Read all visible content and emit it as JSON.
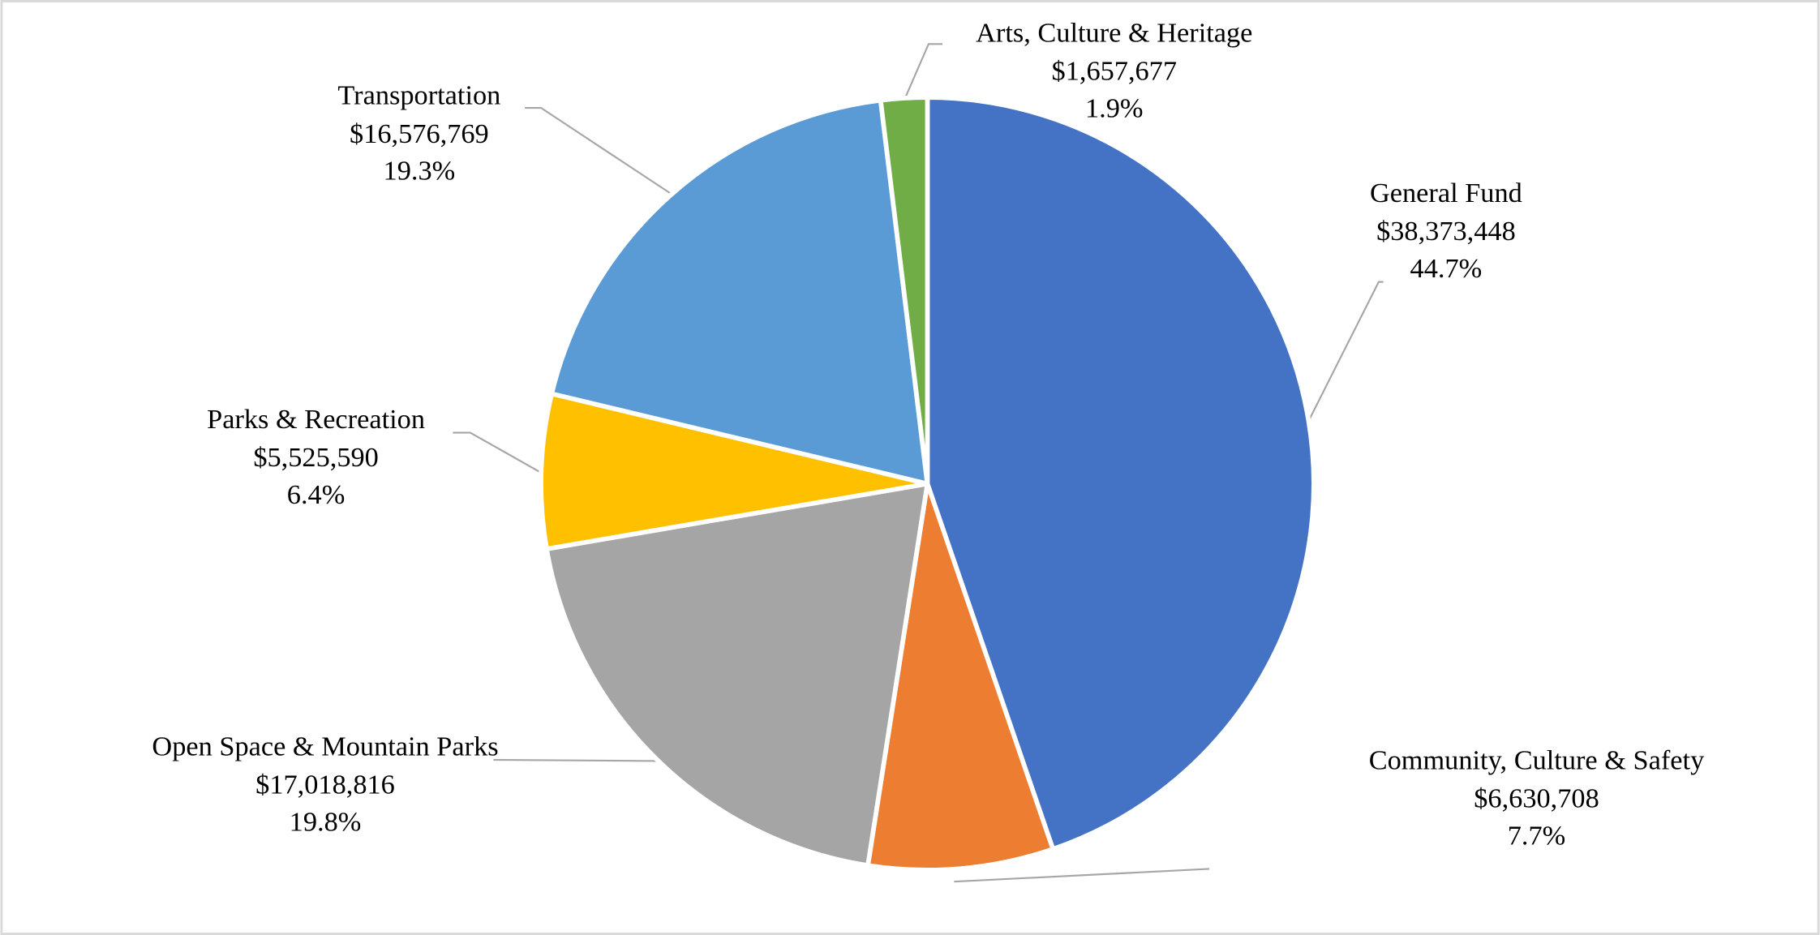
{
  "chart_data": {
    "type": "pie",
    "categories": [
      "General Fund",
      "Community, Culture & Safety",
      "Open Space & Mountain Parks",
      "Parks & Recreation",
      "Transportation",
      "Arts, Culture & Heritage"
    ],
    "values": [
      38373448,
      6630708,
      17018816,
      5525590,
      16576769,
      1657677
    ],
    "value_labels": [
      "$38,373,448",
      "$6,630,708",
      "$17,018,816",
      "$5,525,590",
      "$16,576,769",
      "$1,657,677"
    ],
    "percent_labels": [
      "44.7%",
      "7.7%",
      "19.8%",
      "6.4%",
      "19.3%",
      "1.9%"
    ],
    "colors": [
      "#4472c4",
      "#ed7d31",
      "#a5a5a5",
      "#ffc000",
      "#5b9bd5",
      "#70ad47"
    ]
  }
}
